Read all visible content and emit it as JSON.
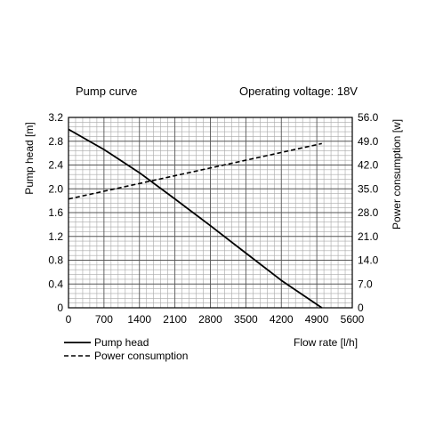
{
  "chart_data": {
    "type": "line",
    "title": "Pump curve",
    "subtitle": "Operating voltage: 18V",
    "xlabel": "Flow rate [l/h]",
    "ylabel": "Pump head [m]",
    "y2label": "Power consumption [w]",
    "xlim": [
      0,
      5600
    ],
    "ylim": [
      0,
      3.2
    ],
    "y2lim": [
      0,
      56.0
    ],
    "x_ticks": [
      "0",
      "700",
      "1400",
      "2100",
      "2800",
      "3500",
      "4200",
      "4900",
      "5600"
    ],
    "y_ticks": [
      "0",
      "0.4",
      "0.8",
      "1.2",
      "1.6",
      "2.0",
      "2.4",
      "2.8",
      "3.2"
    ],
    "y2_ticks": [
      "0",
      "7.0",
      "14.0",
      "21.0",
      "28.0",
      "35.0",
      "42.0",
      "49.0",
      "56.0"
    ],
    "grid": true,
    "legend_position": "bottom-left",
    "series": [
      {
        "name": "Pump head",
        "axis": "left",
        "line_style": "solid",
        "x": [
          0,
          700,
          1400,
          2100,
          2800,
          3500,
          4200,
          5000
        ],
        "y": [
          3.0,
          2.66,
          2.27,
          1.83,
          1.38,
          0.92,
          0.46,
          0.0
        ]
      },
      {
        "name": "Power consumption",
        "axis": "right",
        "line_style": "dashed",
        "x": [
          0,
          5000
        ],
        "y": [
          32.0,
          48.3
        ]
      }
    ]
  }
}
